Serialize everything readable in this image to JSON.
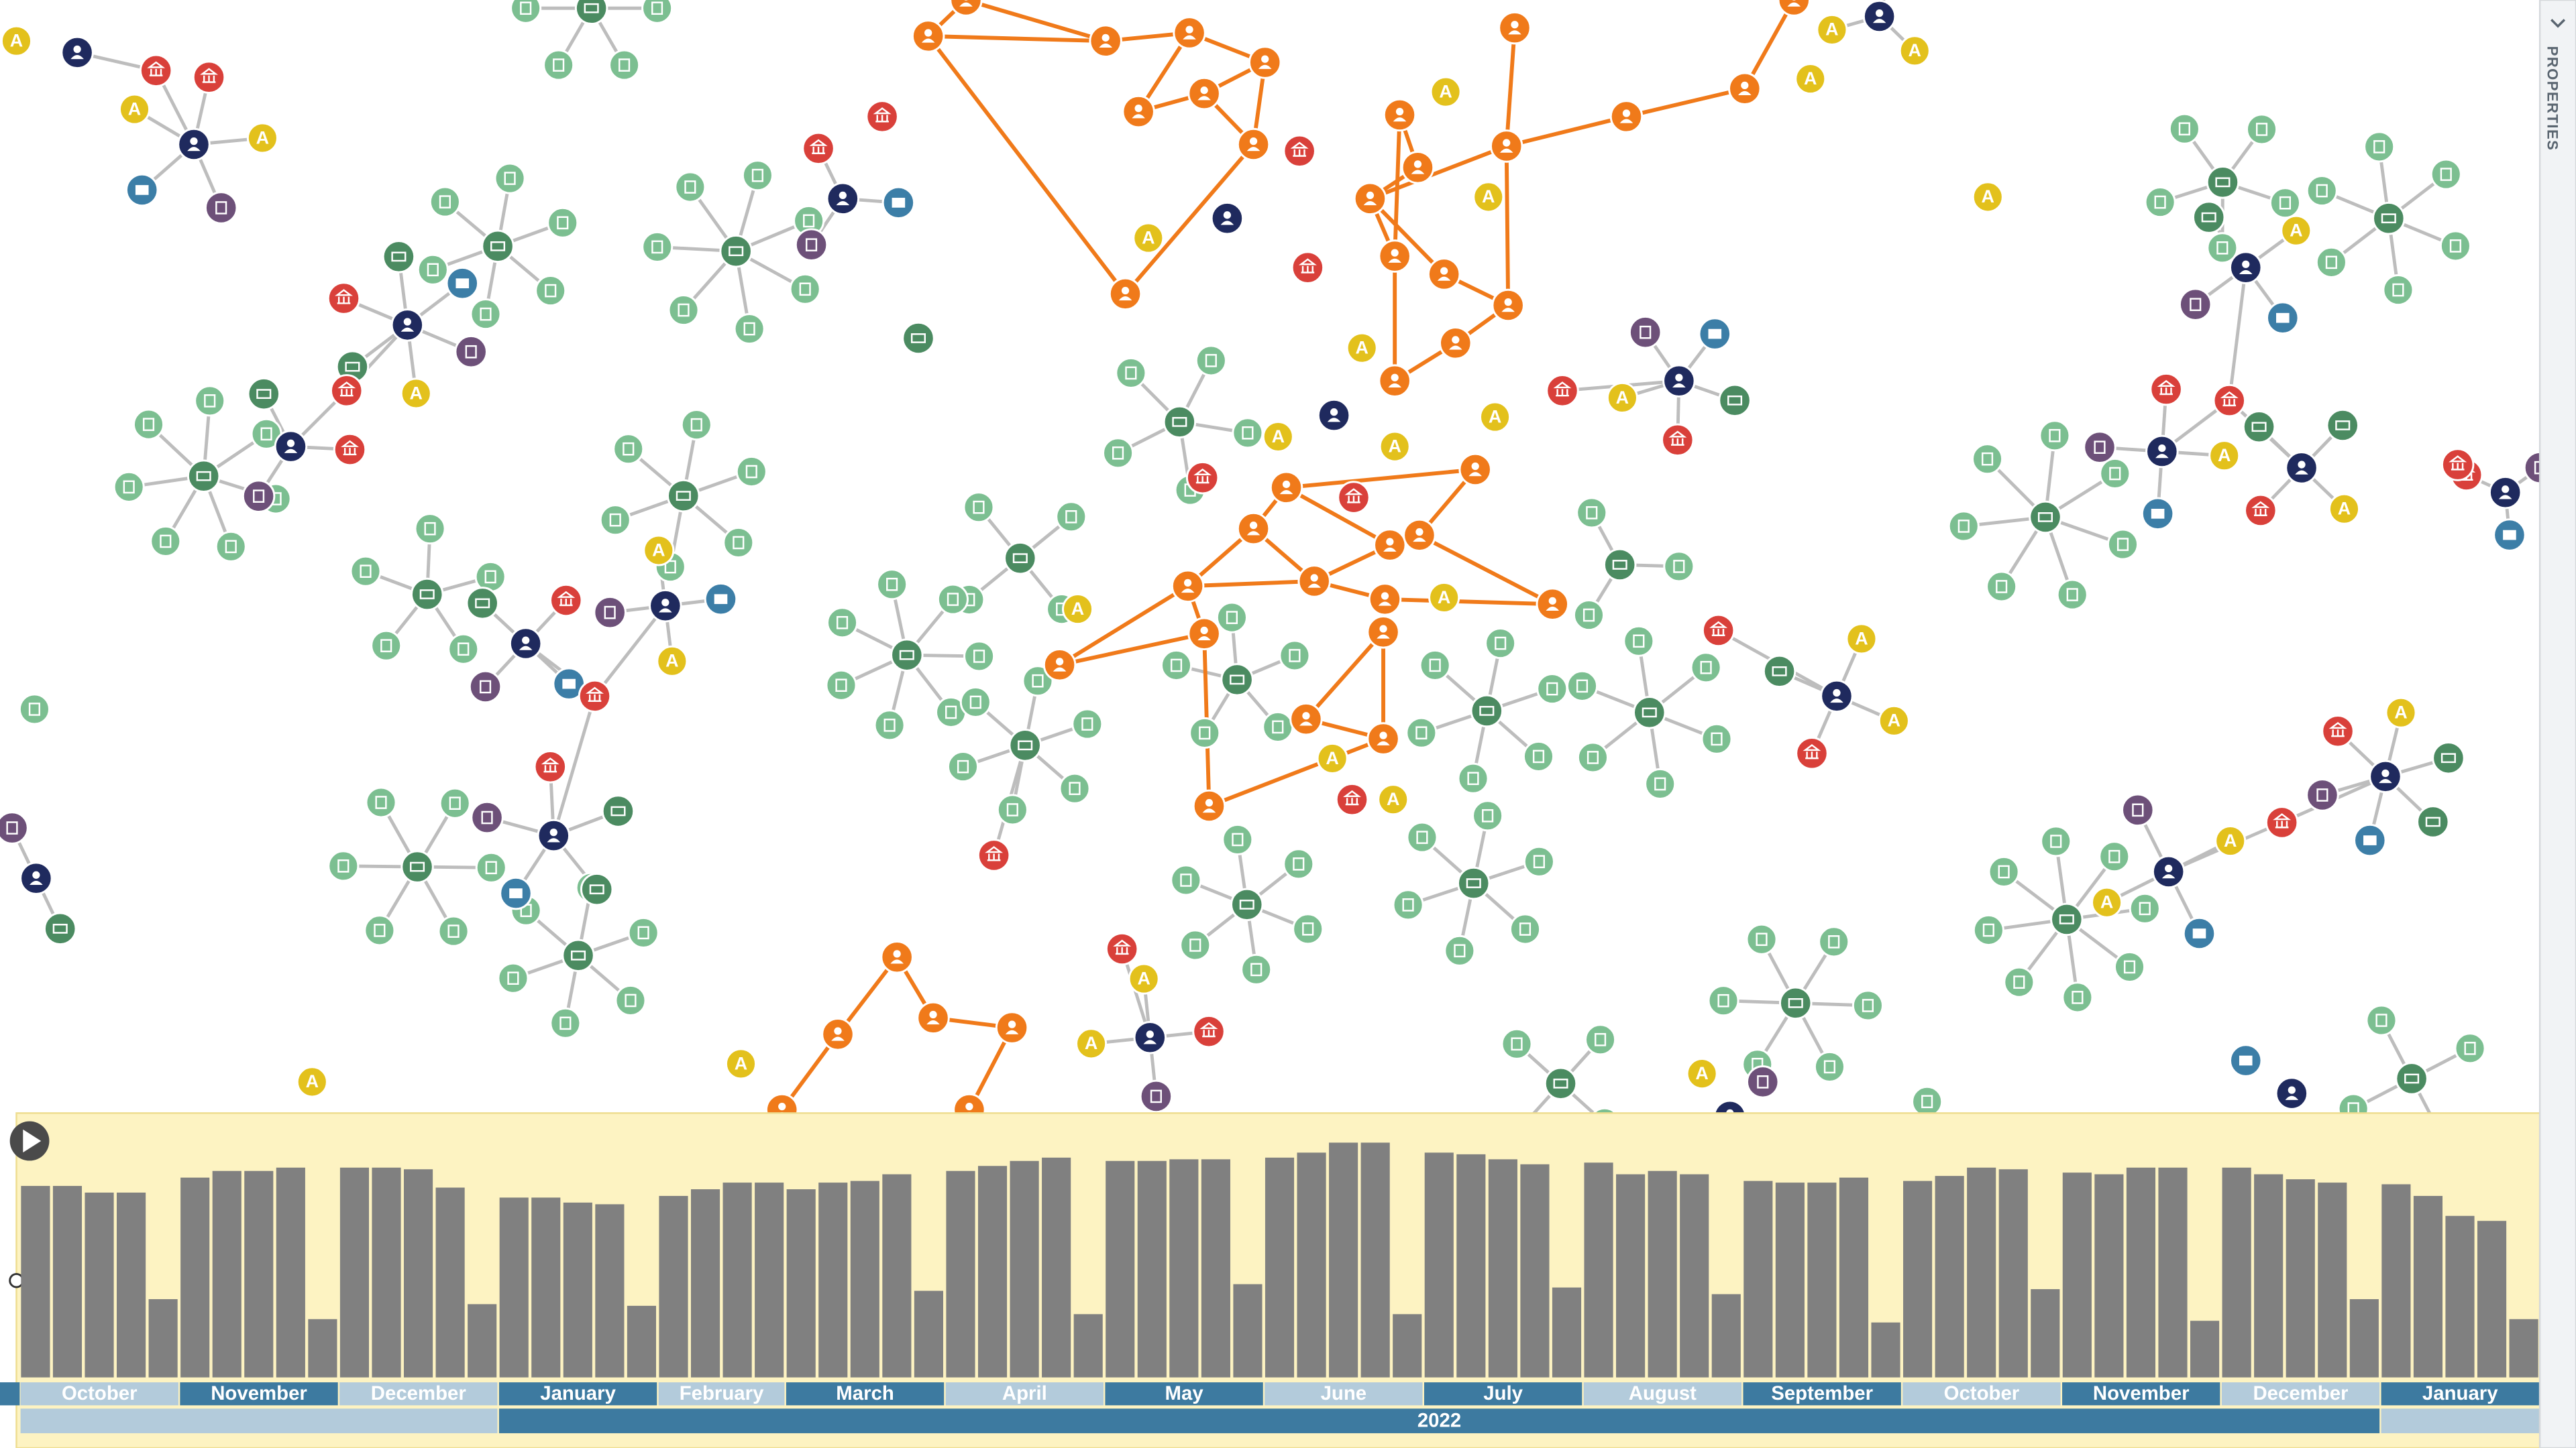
{
  "graph": {
    "badge": "A"
  },
  "side_panel": {
    "title": "PROPERTIES"
  },
  "timeline": {
    "years": [
      {
        "label": null,
        "months": [
          {
            "name": "October",
            "counts": [
              115,
              115,
              111,
              111,
              47
            ]
          },
          {
            "name": "November",
            "counts": [
              120,
              124,
              124,
              126,
              35
            ]
          },
          {
            "name": "December",
            "counts": [
              126,
              126,
              125,
              114,
              44
            ]
          }
        ]
      },
      {
        "label": "2022",
        "months": [
          {
            "name": "January",
            "counts": [
              108,
              108,
              105,
              104,
              43
            ]
          },
          {
            "name": "February",
            "counts": [
              109,
              113,
              117,
              117
            ]
          },
          {
            "name": "March",
            "counts": [
              113,
              117,
              118,
              122,
              52
            ]
          },
          {
            "name": "April",
            "counts": [
              124,
              127,
              130,
              132,
              38
            ]
          },
          {
            "name": "May",
            "counts": [
              130,
              130,
              131,
              131,
              56
            ]
          },
          {
            "name": "June",
            "counts": [
              132,
              135,
              141,
              141,
              38
            ]
          },
          {
            "name": "July",
            "counts": [
              135,
              134,
              131,
              128,
              54
            ]
          },
          {
            "name": "August",
            "counts": [
              129,
              122,
              124,
              122,
              50
            ]
          },
          {
            "name": "September",
            "counts": [
              118,
              117,
              117,
              120,
              33
            ]
          },
          {
            "name": "October",
            "counts": [
              118,
              121,
              126,
              125,
              53
            ]
          },
          {
            "name": "November",
            "counts": [
              123,
              122,
              126,
              126,
              34
            ]
          },
          {
            "name": "December",
            "counts": [
              126,
              122,
              119,
              117,
              47
            ]
          }
        ]
      },
      {
        "label": null,
        "months": [
          {
            "name": "January",
            "counts": [
              116,
              109,
              97,
              94,
              35
            ]
          }
        ]
      }
    ]
  }
}
